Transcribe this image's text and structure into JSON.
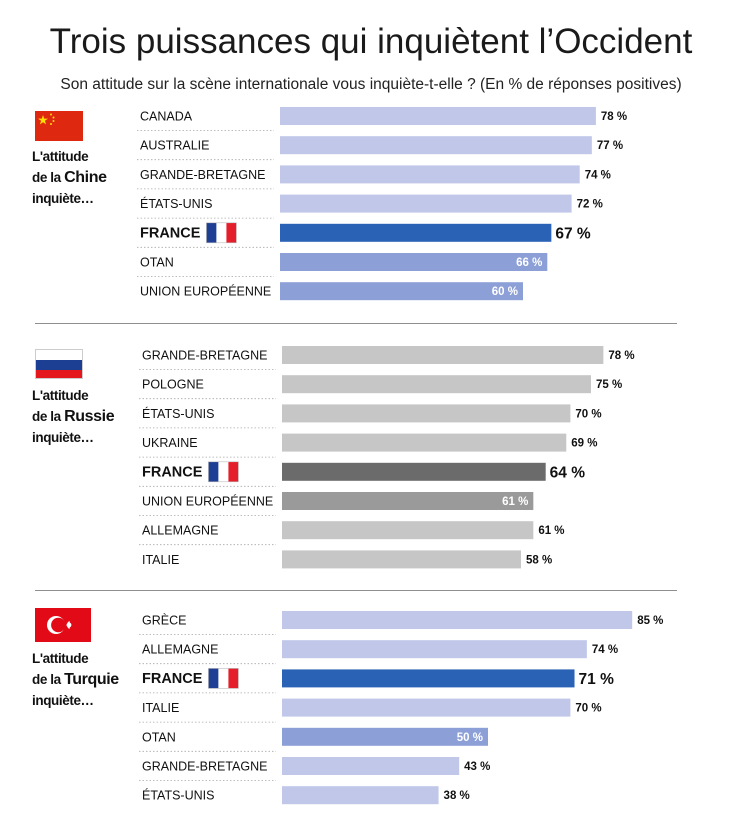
{
  "title": "Trois puissances qui inquiètent l’Occident",
  "subtitle": "Son attitude sur la scène internationale vous inquiète-t-elle ? (En % de réponses positives)",
  "colors": {
    "blue_light": "#c0c7e9",
    "blue_mid": "#8d9fd7",
    "blue_dark": "#2a63b6",
    "gray_light": "#c6c6c6",
    "gray_mid": "#9a9a9a",
    "gray_dark": "#6b6b6b"
  },
  "panels": [
    {
      "label_l1": "L'attitude",
      "label_pre": "de la ",
      "label_country": "Chine",
      "label_l3": "inquiète…",
      "flag": "china-flag"
    },
    {
      "label_l1": "L'attitude",
      "label_pre": "de la ",
      "label_country": "Russie",
      "label_l3": "inquiète…",
      "flag": "russia-flag"
    },
    {
      "label_l1": "L'attitude",
      "label_pre": "de la ",
      "label_country": "Turquie",
      "label_l3": "inquiète…",
      "flag": "turkey-flag"
    }
  ],
  "chart_data": [
    {
      "type": "bar",
      "orientation": "horizontal",
      "palette": "blue",
      "categories": [
        "CANADA",
        "AUSTRALIE",
        "GRANDE-BRETAGNE",
        "ÉTATS-UNIS",
        "FRANCE",
        "OTAN",
        "UNION EUROPÉENNE"
      ],
      "values": [
        78,
        77,
        74,
        72,
        67,
        66,
        60
      ],
      "labels": [
        "78 %",
        "77 %",
        "74 %",
        "72 %",
        "67 %",
        "66 %",
        "60 %"
      ],
      "highlight": "FRANCE",
      "emphasis": [
        "OTAN",
        "UNION EUROPÉENNE"
      ]
    },
    {
      "type": "bar",
      "orientation": "horizontal",
      "palette": "gray",
      "categories": [
        "GRANDE-BRETAGNE",
        "POLOGNE",
        "ÉTATS-UNIS",
        "UKRAINE",
        "FRANCE",
        "UNION EUROPÉENNE",
        "ALLEMAGNE",
        "ITALIE"
      ],
      "values": [
        78,
        75,
        70,
        69,
        64,
        61,
        61,
        58
      ],
      "labels": [
        "78 %",
        "75 %",
        "70 %",
        "69 %",
        "64 %",
        "61 %",
        "61 %",
        "58 %"
      ],
      "highlight": "FRANCE",
      "emphasis": [
        "UNION EUROPÉENNE"
      ]
    },
    {
      "type": "bar",
      "orientation": "horizontal",
      "palette": "blue",
      "categories": [
        "GRÈCE",
        "ALLEMAGNE",
        "FRANCE",
        "ITALIE",
        "OTAN",
        "GRANDE-BRETAGNE",
        "ÉTATS-UNIS"
      ],
      "values": [
        85,
        74,
        71,
        70,
        50,
        43,
        38
      ],
      "labels": [
        "85 %",
        "74 %",
        "71 %",
        "70 %",
        "50 %",
        "43 %",
        "38 %"
      ],
      "highlight": "FRANCE",
      "emphasis": [
        "OTAN"
      ]
    }
  ]
}
